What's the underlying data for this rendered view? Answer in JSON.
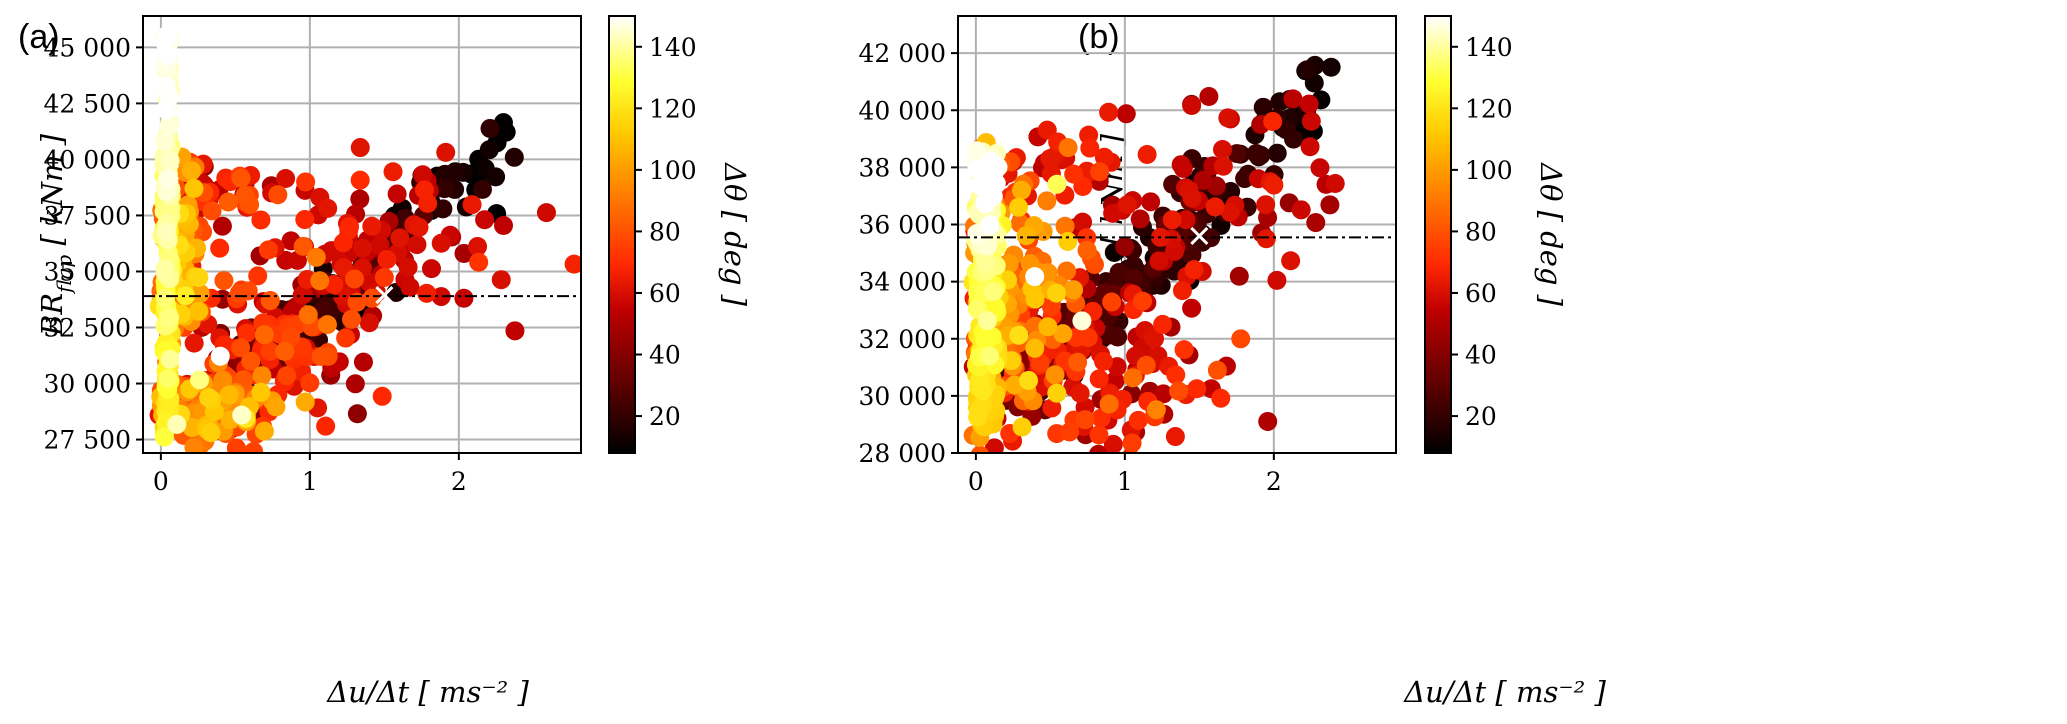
{
  "chart_data": [
    {
      "type": "scatter",
      "panel_label": "(a)",
      "xlabel": "Δu/Δt [ ms⁻² ]",
      "ylabel": "BR_flap [ kNm ]",
      "colorbar_label": "Δθ [ deg ]",
      "xlim": [
        -0.12,
        2.82
      ],
      "ylim": [
        26900,
        46400
      ],
      "xticks": [
        0,
        1,
        2
      ],
      "xtick_labels": [
        "0",
        "1",
        "2"
      ],
      "yticks": [
        27500,
        30000,
        32500,
        35000,
        37500,
        40000,
        42500,
        45000
      ],
      "ytick_labels": [
        "27 500",
        "30 000",
        "32 500",
        "35 000",
        "37 500",
        "40 000",
        "42 500",
        "45 000"
      ],
      "clim": [
        8,
        150
      ],
      "cticks": [
        20,
        40,
        60,
        80,
        100,
        120,
        140
      ],
      "ctick_labels": [
        "20",
        "40",
        "60",
        "80",
        "100",
        "120",
        "140"
      ],
      "hline_y": 33900,
      "marker_x": {
        "x": 1.5,
        "y": 33950
      },
      "seed": 11,
      "clusters": [
        {
          "kind": "band",
          "x0": 0.02,
          "x1": 0.07,
          "y0": 27600,
          "y1": 45600,
          "c0": 120,
          "c1": 150,
          "n": 130
        },
        {
          "kind": "blob",
          "cx": 0.12,
          "cy": 35500,
          "sx": 0.08,
          "sy": 2200,
          "c": 95,
          "cs": 18,
          "n": 100
        },
        {
          "kind": "blob",
          "cx": 0.35,
          "cy": 29000,
          "sx": 0.22,
          "sy": 900,
          "c": 90,
          "cs": 18,
          "n": 140
        },
        {
          "kind": "line",
          "x0": 0.3,
          "y0": 29600,
          "x1": 1.3,
          "y1": 34300,
          "sy": 600,
          "c0": 40,
          "c1": 10,
          "n": 140
        },
        {
          "kind": "blob",
          "cx": 0.9,
          "cy": 31500,
          "sx": 0.35,
          "sy": 1800,
          "c": 65,
          "cs": 12,
          "n": 120
        },
        {
          "kind": "line",
          "x0": 1.2,
          "y0": 34800,
          "x1": 2.35,
          "y1": 40500,
          "sy": 900,
          "c0": 30,
          "c1": 8,
          "n": 55
        },
        {
          "kind": "blob",
          "cx": 1.4,
          "cy": 36500,
          "sx": 0.5,
          "sy": 1800,
          "c": 58,
          "cs": 6,
          "n": 80
        },
        {
          "kind": "blob",
          "cx": 0.5,
          "cy": 38600,
          "sx": 0.25,
          "sy": 800,
          "c": 65,
          "cs": 10,
          "n": 35
        }
      ]
    },
    {
      "type": "scatter",
      "panel_label": "(b)",
      "xlabel": "Δu/Δt [ ms⁻² ]",
      "ylabel": "BR_flap [ kNm ]",
      "colorbar_label": "Δθ [ deg ]",
      "xlim": [
        -0.12,
        2.82
      ],
      "ylim": [
        28000,
        43300
      ],
      "xticks": [
        0,
        1,
        2
      ],
      "xtick_labels": [
        "0",
        "1",
        "2"
      ],
      "yticks": [
        28000,
        30000,
        32000,
        34000,
        36000,
        38000,
        40000,
        42000
      ],
      "ytick_labels": [
        "28 000",
        "30 000",
        "32 000",
        "34 000",
        "36 000",
        "38 000",
        "40 000",
        "42 000"
      ],
      "clim": [
        8,
        150
      ],
      "cticks": [
        20,
        40,
        60,
        80,
        100,
        120,
        140
      ],
      "ctick_labels": [
        "20",
        "40",
        "60",
        "80",
        "100",
        "120",
        "140"
      ],
      "hline_y": 35550,
      "marker_x": {
        "x": 1.5,
        "y": 35600
      },
      "seed": 23,
      "clusters": [
        {
          "kind": "band",
          "x0": 0.0,
          "x1": 0.15,
          "y0": 28900,
          "y1": 38600,
          "c0": 110,
          "c1": 150,
          "n": 160
        },
        {
          "kind": "blob",
          "cx": 0.3,
          "cy": 33500,
          "sx": 0.2,
          "sy": 2200,
          "c": 90,
          "cs": 18,
          "n": 140
        },
        {
          "kind": "line",
          "x0": 0.2,
          "y0": 29800,
          "x1": 1.6,
          "y1": 36600,
          "sy": 700,
          "c0": 35,
          "c1": 10,
          "n": 150
        },
        {
          "kind": "blob",
          "cx": 0.8,
          "cy": 31000,
          "sx": 0.45,
          "sy": 1700,
          "c": 62,
          "cs": 10,
          "n": 130
        },
        {
          "kind": "line",
          "x0": 1.3,
          "y0": 35500,
          "x1": 2.35,
          "y1": 40800,
          "sy": 900,
          "c0": 30,
          "c1": 8,
          "n": 55
        },
        {
          "kind": "blob",
          "cx": 1.5,
          "cy": 36800,
          "sx": 0.55,
          "sy": 1800,
          "c": 58,
          "cs": 6,
          "n": 80
        },
        {
          "kind": "blob",
          "cx": 0.6,
          "cy": 38200,
          "sx": 0.25,
          "sy": 500,
          "c": 62,
          "cs": 8,
          "n": 20
        }
      ]
    }
  ]
}
